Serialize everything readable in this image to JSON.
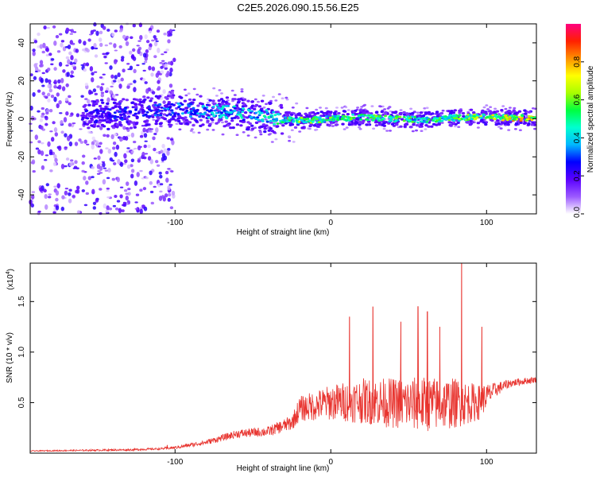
{
  "title": "C2E5.2026.090.15.56.E25",
  "chart_data": [
    {
      "type": "heatmap",
      "name": "spectrogram",
      "xlabel": "Height of straight line (km)",
      "ylabel": "Frequency (Hz)",
      "xlim": [
        -193,
        132
      ],
      "ylim": [
        -50,
        50
      ],
      "x_ticks": [
        -100,
        0,
        100
      ],
      "y_ticks": [
        -40,
        -20,
        0,
        20,
        40
      ],
      "colorbar": {
        "label": "Normalized spectral amplitude",
        "range": [
          0.0,
          1.0
        ],
        "ticks": [
          "0.0",
          "0.2",
          "0.4",
          "0.6",
          "0.8"
        ],
        "colors": [
          "#ffffff",
          "#9b59ff",
          "#5a00ff",
          "#0000ff",
          "#00b8ff",
          "#00ffd0",
          "#00ff40",
          "#a8ff00",
          "#ffff00",
          "#ff9000",
          "#ff2000",
          "#ff0080"
        ]
      },
      "ridge": {
        "x": [
          -160,
          -130,
          -100,
          -80,
          -60,
          -40,
          -20,
          0,
          20,
          40,
          60,
          80,
          100,
          115,
          132
        ],
        "freq": [
          1,
          3,
          5,
          4,
          3,
          1,
          -1,
          0,
          1,
          0,
          -0.5,
          0.5,
          1,
          0.5,
          0.5
        ],
        "amplitude": [
          0.25,
          0.3,
          0.35,
          0.45,
          0.45,
          0.5,
          0.65,
          0.6,
          0.6,
          0.62,
          0.55,
          0.6,
          0.7,
          0.8,
          0.9
        ]
      },
      "noise_region": {
        "x_range": [
          -193,
          -100
        ],
        "amplitude": 0.15
      }
    },
    {
      "type": "line",
      "name": "snr",
      "xlabel": "Height of straight line (km)",
      "ylabel": "SNR (10 * v/v)",
      "y_multiplier": "(x10",
      "y_multiplier_exp": "4",
      "y_multiplier_close": ")",
      "xlim": [
        -193,
        132
      ],
      "ylim": [
        0,
        1.88
      ],
      "x_ticks": [
        -100,
        0,
        100
      ],
      "y_ticks": [
        0.5,
        1.0,
        1.5
      ],
      "y_tick_labels": [
        "0.5",
        "1.0",
        "1.5"
      ],
      "color": "#e8342f",
      "envelope": {
        "x": [
          -193,
          -130,
          -110,
          -100,
          -80,
          -60,
          -40,
          -25,
          -20,
          0,
          10,
          20,
          40,
          60,
          80,
          95,
          105,
          115,
          132
        ],
        "base": [
          0.02,
          0.03,
          0.04,
          0.05,
          0.1,
          0.18,
          0.2,
          0.28,
          0.4,
          0.45,
          0.45,
          0.45,
          0.42,
          0.4,
          0.42,
          0.45,
          0.6,
          0.68,
          0.72
        ],
        "spread": [
          0.01,
          0.02,
          0.02,
          0.03,
          0.05,
          0.08,
          0.1,
          0.15,
          0.25,
          0.35,
          0.4,
          0.45,
          0.5,
          0.55,
          0.5,
          0.35,
          0.15,
          0.08,
          0.06
        ]
      },
      "peaks": [
        {
          "x": -105,
          "y": 0.08
        },
        {
          "x": 12,
          "y": 1.35
        },
        {
          "x": 27,
          "y": 1.45
        },
        {
          "x": 45,
          "y": 1.3
        },
        {
          "x": 56,
          "y": 1.45
        },
        {
          "x": 62,
          "y": 1.4
        },
        {
          "x": 70,
          "y": 1.25
        },
        {
          "x": 84,
          "y": 1.88
        },
        {
          "x": 97,
          "y": 1.25
        }
      ]
    }
  ]
}
